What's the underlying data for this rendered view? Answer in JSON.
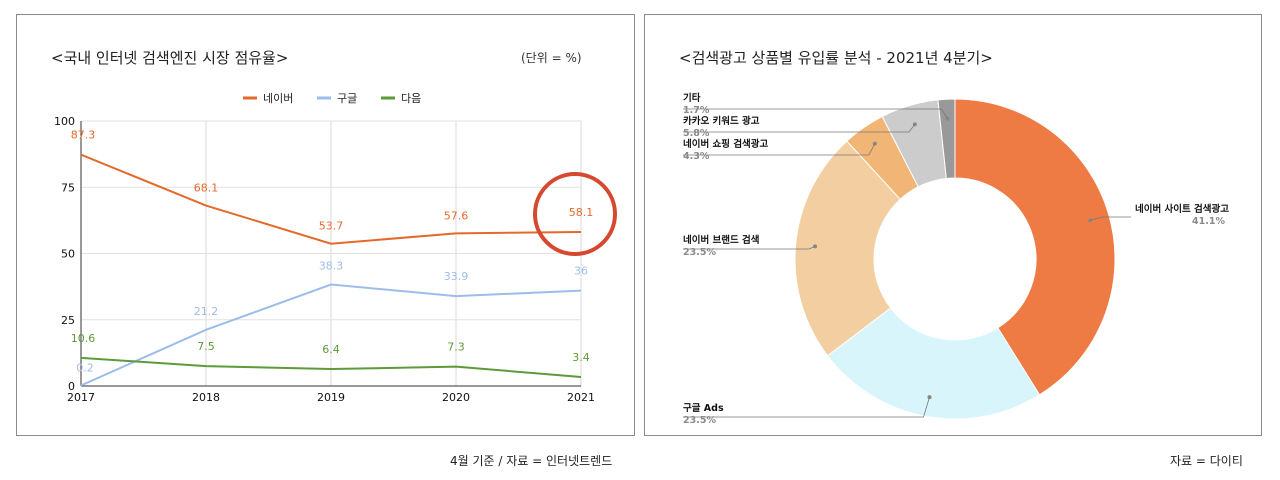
{
  "charts": [
    {
      "chart_data": {
        "type": "line",
        "title": "<국내 인터넷 검색엔진 시장 점유율>",
        "unit_note": "(단위 = %)",
        "x": [
          "2017",
          "2018",
          "2019",
          "2020",
          "2021"
        ],
        "ylim": [
          0,
          100
        ],
        "yticks": [
          "0",
          "25",
          "50",
          "75",
          "100"
        ],
        "series": [
          {
            "name": "네이버",
            "color": "#e4692c",
            "values": [
              87.3,
              68.1,
              53.7,
              57.6,
              58.1
            ],
            "labels": [
              "87.3",
              "68.1",
              "53.7",
              "57.6",
              "58.1"
            ]
          },
          {
            "name": "구글",
            "color": "#9dbcec",
            "values": [
              0.2,
              21.2,
              38.3,
              33.9,
              36
            ],
            "labels": [
              "0.2",
              "21.2",
              "38.3",
              "33.9",
              "36"
            ]
          },
          {
            "name": "다음",
            "color": "#5c9a3a",
            "values": [
              10.6,
              7.5,
              6.4,
              7.3,
              3.4
            ],
            "labels": [
              "10.6",
              "7.5",
              "6.4",
              "7.3",
              "3.4"
            ]
          }
        ],
        "legend": "top",
        "grid": true,
        "annotation": {
          "type": "circle",
          "target": "네이버 2021",
          "color": "#d6492f"
        }
      },
      "caption": "4월 기준 / 자료 = 인터넷트렌드"
    },
    {
      "chart_data": {
        "type": "pie",
        "title": "<검색광고 상품별 유입률 분석 - 2021년 4분기>",
        "donut": true,
        "slices": [
          {
            "label": "네이버 사이트 검색광고",
            "value": 41.1,
            "pct": "41.1%",
            "color": "#ee7b43"
          },
          {
            "label": "구글 Ads",
            "value": 23.5,
            "pct": "23.5%",
            "color": "#d7f5fb"
          },
          {
            "label": "네이버 브랜드 검색",
            "value": 23.5,
            "pct": "23.5%",
            "color": "#f3ceA0"
          },
          {
            "label": "네이버 쇼핑 검색광고",
            "value": 4.3,
            "pct": "4.3%",
            "color": "#f1b675"
          },
          {
            "label": "카카오 키워드 광고",
            "value": 5.8,
            "pct": "5.8%",
            "color": "#cccccc"
          },
          {
            "label": "기타",
            "value": 1.7,
            "pct": "1.7%",
            "color": "#999999"
          }
        ]
      },
      "caption": "자료 = 다이티"
    }
  ]
}
